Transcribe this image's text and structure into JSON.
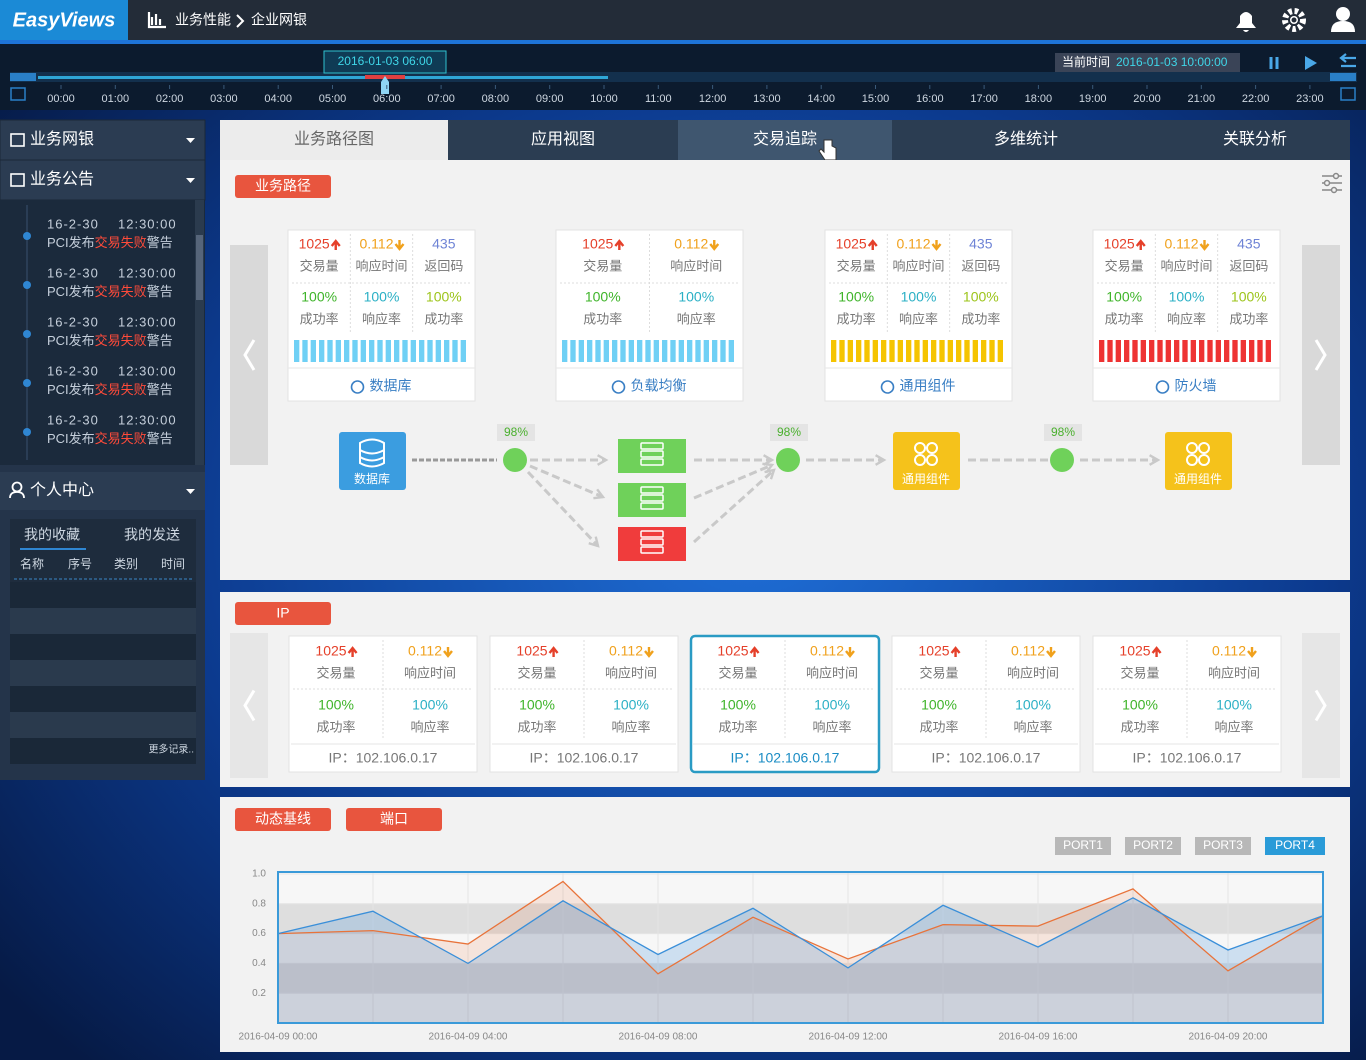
{
  "header": {
    "logo": "EasyViews",
    "breadcrumb": [
      "业务性能",
      "企业网银"
    ]
  },
  "timeline": {
    "marker": "2016-01-03 06:00",
    "current_label": "当前时间",
    "current_time": "2016-01-03 10:00:00",
    "hours": [
      "00:00",
      "01:00",
      "02:00",
      "03:00",
      "04:00",
      "05:00",
      "06:00",
      "07:00",
      "08:00",
      "09:00",
      "10:00",
      "11:00",
      "12:00",
      "13:00",
      "14:00",
      "15:00",
      "16:00",
      "17:00",
      "18:00",
      "19:00",
      "20:00",
      "21:00",
      "22:00",
      "23:00"
    ]
  },
  "sidebar": {
    "menu": [
      "业务网银",
      "业务公告"
    ],
    "notices": [
      {
        "date": "16-2-30",
        "time": "12:30:00",
        "prefix": "PCI发布",
        "highlight": "交易失败",
        "suffix": "警告"
      },
      {
        "date": "16-2-30",
        "time": "12:30:00",
        "prefix": "PCI发布",
        "highlight": "交易失败",
        "suffix": "警告"
      },
      {
        "date": "16-2-30",
        "time": "12:30:00",
        "prefix": "PCI发布",
        "highlight": "交易失败",
        "suffix": "警告"
      },
      {
        "date": "16-2-30",
        "time": "12:30:00",
        "prefix": "PCI发布",
        "highlight": "交易失败",
        "suffix": "警告"
      },
      {
        "date": "16-2-30",
        "time": "12:30:00",
        "prefix": "PCI发布",
        "highlight": "交易失败",
        "suffix": "警告"
      }
    ],
    "personal": {
      "title": "个人中心",
      "tabs": [
        "我的收藏",
        "我的发送"
      ],
      "columns": [
        "名称",
        "序号",
        "类别",
        "时间"
      ],
      "more": "更多记录.."
    }
  },
  "tabs": {
    "items": [
      "业务路径图",
      "应用视图",
      "交易追踪",
      "多维统计",
      "关联分析"
    ],
    "active": 0,
    "hover": 2
  },
  "path_panel": {
    "badge": "业务路径",
    "cards": [
      {
        "name": "数据库",
        "bar_color": "#6fd0f5",
        "rows": [
          [
            {
              "value": "1025",
              "label": "交易量",
              "color": "#e5402a",
              "trend": "up"
            },
            {
              "value": "0.112",
              "label": "响应时间",
              "color": "#f0a11c",
              "trend": "down"
            },
            {
              "value": "435",
              "label": "返回码",
              "color": "#6f84d6"
            }
          ],
          [
            {
              "value": "100%",
              "label": "成功率",
              "color": "#3fb42a"
            },
            {
              "value": "100%",
              "label": "响应率",
              "color": "#2bb0c5"
            },
            {
              "value": "100%",
              "label": "成功率",
              "color": "#9cc41a"
            }
          ]
        ]
      },
      {
        "name": "负载均衡",
        "bar_color": "#6fd0f5",
        "rows": [
          [
            {
              "value": "1025",
              "label": "交易量",
              "color": "#e5402a",
              "trend": "up"
            },
            {
              "value": "0.112",
              "label": "响应时间",
              "color": "#f0a11c",
              "trend": "down"
            }
          ],
          [
            {
              "value": "100%",
              "label": "成功率",
              "color": "#3fb42a"
            },
            {
              "value": "100%",
              "label": "响应率",
              "color": "#2bb0c5"
            }
          ]
        ]
      },
      {
        "name": "通用组件",
        "bar_color": "#f5c400",
        "rows": [
          [
            {
              "value": "1025",
              "label": "交易量",
              "color": "#e5402a",
              "trend": "up"
            },
            {
              "value": "0.112",
              "label": "响应时间",
              "color": "#f0a11c",
              "trend": "down"
            },
            {
              "value": "435",
              "label": "返回码",
              "color": "#6f84d6"
            }
          ],
          [
            {
              "value": "100%",
              "label": "成功率",
              "color": "#3fb42a"
            },
            {
              "value": "100%",
              "label": "响应率",
              "color": "#2bb0c5"
            },
            {
              "value": "100%",
              "label": "成功率",
              "color": "#9cc41a"
            }
          ]
        ]
      },
      {
        "name": "防火墙",
        "bar_color": "#ee3333",
        "rows": [
          [
            {
              "value": "1025",
              "label": "交易量",
              "color": "#e5402a",
              "trend": "up"
            },
            {
              "value": "0.112",
              "label": "响应时间",
              "color": "#f0a11c",
              "trend": "down"
            },
            {
              "value": "435",
              "label": "返回码",
              "color": "#6f84d6"
            }
          ],
          [
            {
              "value": "100%",
              "label": "成功率",
              "color": "#3fb42a"
            },
            {
              "value": "100%",
              "label": "响应率",
              "color": "#2bb0c5"
            },
            {
              "value": "100%",
              "label": "成功率",
              "color": "#9cc41a"
            }
          ]
        ]
      }
    ],
    "flow": {
      "rates": [
        "98%",
        "98%",
        "98%"
      ],
      "source": "数据库",
      "targets": [
        "通用组件",
        "通用组件"
      ]
    }
  },
  "ip_panel": {
    "badge": "IP",
    "selected": 2,
    "cards": [
      {
        "ip": "IP：102.106.0.17",
        "rows": [
          [
            {
              "value": "1025",
              "label": "交易量",
              "color": "#e5402a",
              "trend": "up"
            },
            {
              "value": "0.112",
              "label": "响应时间",
              "color": "#f0a11c",
              "trend": "down"
            }
          ],
          [
            {
              "value": "100%",
              "label": "成功率",
              "color": "#3fb42a"
            },
            {
              "value": "100%",
              "label": "响应率",
              "color": "#2bb0c5"
            }
          ]
        ]
      },
      {
        "ip": "IP：102.106.0.17",
        "rows": [
          [
            {
              "value": "1025",
              "label": "交易量",
              "color": "#e5402a",
              "trend": "up"
            },
            {
              "value": "0.112",
              "label": "响应时间",
              "color": "#f0a11c",
              "trend": "down"
            }
          ],
          [
            {
              "value": "100%",
              "label": "成功率",
              "color": "#3fb42a"
            },
            {
              "value": "100%",
              "label": "响应率",
              "color": "#2bb0c5"
            }
          ]
        ]
      },
      {
        "ip": "IP：102.106.0.17",
        "rows": [
          [
            {
              "value": "1025",
              "label": "交易量",
              "color": "#e5402a",
              "trend": "up"
            },
            {
              "value": "0.112",
              "label": "响应时间",
              "color": "#f0a11c",
              "trend": "down"
            }
          ],
          [
            {
              "value": "100%",
              "label": "成功率",
              "color": "#3fb42a"
            },
            {
              "value": "100%",
              "label": "响应率",
              "color": "#2bb0c5"
            }
          ]
        ]
      },
      {
        "ip": "IP：102.106.0.17",
        "rows": [
          [
            {
              "value": "1025",
              "label": "交易量",
              "color": "#e5402a",
              "trend": "up"
            },
            {
              "value": "0.112",
              "label": "响应时间",
              "color": "#f0a11c",
              "trend": "down"
            }
          ],
          [
            {
              "value": "100%",
              "label": "成功率",
              "color": "#3fb42a"
            },
            {
              "value": "100%",
              "label": "响应率",
              "color": "#2bb0c5"
            }
          ]
        ]
      },
      {
        "ip": "IP：102.106.0.17",
        "rows": [
          [
            {
              "value": "1025",
              "label": "交易量",
              "color": "#e5402a",
              "trend": "up"
            },
            {
              "value": "0.112",
              "label": "响应时间",
              "color": "#f0a11c",
              "trend": "down"
            }
          ],
          [
            {
              "value": "100%",
              "label": "成功率",
              "color": "#3fb42a"
            },
            {
              "value": "100%",
              "label": "响应率",
              "color": "#2bb0c5"
            }
          ]
        ]
      }
    ]
  },
  "baseline_panel": {
    "badges": [
      "动态基线",
      "端口"
    ],
    "ports": [
      "PORT1",
      "PORT2",
      "PORT3",
      "PORT4"
    ],
    "active_port": 3,
    "chart": {
      "type": "line",
      "categories": [
        "2016-04-09 00:00",
        null,
        "2016-04-09 04:00",
        null,
        "2016-04-09 08:00",
        null,
        "2016-04-09 12:00",
        null,
        "2016-04-09 16:00",
        null,
        "2016-04-09 20:00",
        null
      ],
      "series": [
        {
          "color": "#3a8fd9",
          "values": [
            0.6,
            0.75,
            0.4,
            0.82,
            0.46,
            0.77,
            0.37,
            0.79,
            0.51,
            0.84,
            0.49,
            0.72
          ]
        },
        {
          "color": "#e8733a",
          "values": [
            0.6,
            0.62,
            0.53,
            0.95,
            0.33,
            0.71,
            0.43,
            0.66,
            0.65,
            0.9,
            0.35,
            0.72
          ]
        }
      ],
      "ylim": [
        0,
        1
      ],
      "yticks": [
        0.2,
        0.4,
        0.6,
        0.8,
        {
          "value": 1,
          "label": "1.0"
        }
      ]
    }
  }
}
